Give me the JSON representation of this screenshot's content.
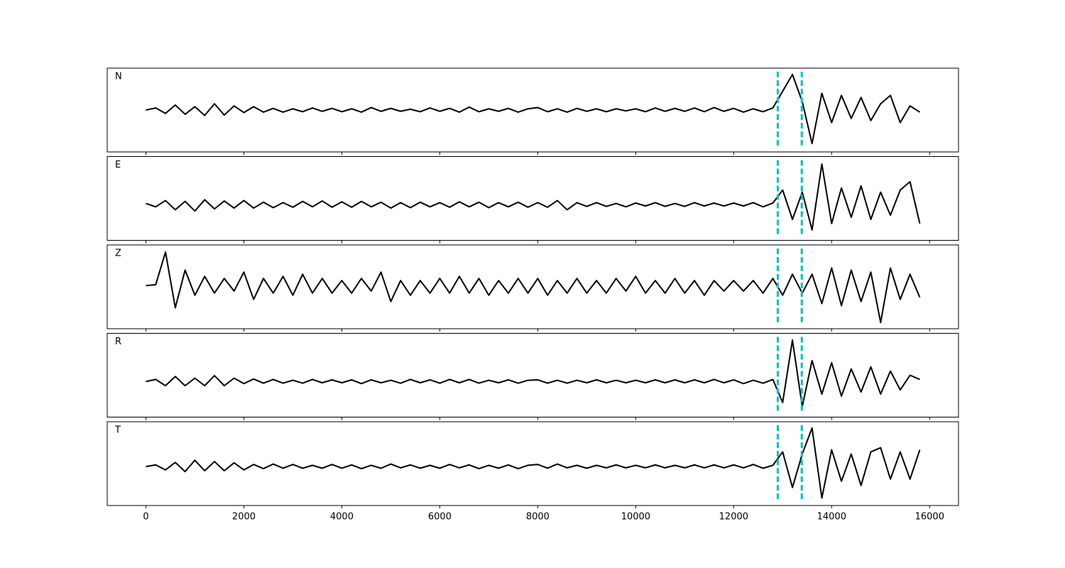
{
  "chart_data": {
    "type": "line",
    "x": [
      0,
      200,
      400,
      600,
      800,
      1000,
      1200,
      1400,
      1600,
      1800,
      2000,
      2200,
      2400,
      2600,
      2800,
      3000,
      3200,
      3400,
      3600,
      3800,
      4000,
      4200,
      4400,
      4600,
      4800,
      5000,
      5200,
      5400,
      5600,
      5800,
      6000,
      6200,
      6400,
      6600,
      6800,
      7000,
      7200,
      7400,
      7600,
      7800,
      8000,
      8200,
      8400,
      8600,
      8800,
      9000,
      9200,
      9400,
      9600,
      9800,
      10000,
      10200,
      10400,
      10600,
      10800,
      11000,
      11200,
      11400,
      11600,
      11800,
      12000,
      12200,
      12400,
      12600,
      12800,
      13000,
      13200,
      13400,
      13600,
      13800,
      14000,
      14200,
      14400,
      14600,
      14800,
      15000,
      15200,
      15400,
      15600,
      15800
    ],
    "xlim": [
      -790,
      16590
    ],
    "xticks": [
      0,
      2000,
      4000,
      6000,
      8000,
      10000,
      12000,
      14000,
      16000
    ],
    "vlines": [
      12900,
      13390
    ],
    "vline_color": "#00bfbf",
    "series": [
      {
        "name": "N",
        "color": "#000000",
        "ylim": [
          -1,
          1
        ],
        "values": [
          0,
          0.05,
          -0.08,
          0.12,
          -0.1,
          0.08,
          -0.13,
          0.15,
          -0.12,
          0.1,
          -0.06,
          0.08,
          -0.05,
          0.04,
          -0.05,
          0.03,
          -0.04,
          0.05,
          -0.03,
          0.04,
          -0.04,
          0.03,
          -0.05,
          0.06,
          -0.03,
          0.04,
          -0.03,
          0.02,
          -0.04,
          0.05,
          -0.03,
          0.04,
          -0.05,
          0.07,
          -0.04,
          0.03,
          -0.03,
          0.04,
          -0.05,
          0.03,
          0.06,
          -0.04,
          0.03,
          -0.05,
          0.04,
          -0.03,
          0.03,
          -0.04,
          0.03,
          -0.02,
          0.03,
          -0.04,
          0.05,
          -0.03,
          0.04,
          -0.03,
          0.05,
          -0.04,
          0.06,
          -0.03,
          0.04,
          -0.05,
          0.03,
          -0.04,
          0.05,
          0.45,
          0.85,
          0.2,
          -0.8,
          0.4,
          -0.3,
          0.35,
          -0.2,
          0.3,
          -0.25,
          0.15,
          0.35,
          -0.3,
          0.1,
          -0.05
        ]
      },
      {
        "name": "E",
        "color": "#000000",
        "ylim": [
          -0.85,
          1.15
        ],
        "values": [
          0.03,
          -0.05,
          0.1,
          -0.12,
          0.08,
          -0.15,
          0.12,
          -0.1,
          0.09,
          -0.08,
          0.1,
          -0.08,
          0.06,
          -0.07,
          0.05,
          -0.06,
          0.08,
          -0.05,
          0.09,
          -0.06,
          0.07,
          -0.06,
          0.08,
          -0.05,
          0.06,
          -0.08,
          0.05,
          -0.07,
          0.06,
          -0.05,
          0.05,
          -0.06,
          0.07,
          -0.05,
          0.06,
          -0.07,
          0.05,
          -0.05,
          0.06,
          -0.06,
          0.05,
          -0.06,
          0.1,
          -0.12,
          0.05,
          -0.04,
          0.05,
          -0.04,
          0.03,
          -0.05,
          0.04,
          -0.03,
          0.05,
          -0.04,
          0.03,
          -0.04,
          0.05,
          -0.03,
          0.04,
          -0.03,
          0.04,
          -0.03,
          0.05,
          -0.05,
          0.04,
          0.35,
          -0.35,
          0.3,
          -0.6,
          0.97,
          -0.45,
          0.4,
          -0.3,
          0.45,
          -0.35,
          0.3,
          -0.25,
          0.35,
          0.55,
          -0.45
        ]
      },
      {
        "name": "Z",
        "color": "#000000",
        "ylim": [
          -1,
          1
        ],
        "values": [
          0.03,
          0.05,
          0.83,
          -0.5,
          0.4,
          -0.2,
          0.25,
          -0.15,
          0.2,
          -0.1,
          0.35,
          -0.3,
          0.2,
          -0.15,
          0.25,
          -0.2,
          0.3,
          -0.15,
          0.2,
          -0.15,
          0.15,
          -0.15,
          0.2,
          -0.1,
          0.35,
          -0.35,
          0.15,
          -0.2,
          0.15,
          -0.15,
          0.2,
          -0.15,
          0.25,
          -0.15,
          0.2,
          -0.2,
          0.15,
          -0.15,
          0.2,
          -0.15,
          0.2,
          -0.2,
          0.15,
          -0.15,
          0.2,
          -0.15,
          0.15,
          -0.15,
          0.2,
          -0.1,
          0.25,
          -0.15,
          0.15,
          -0.15,
          0.2,
          -0.15,
          0.15,
          -0.2,
          0.15,
          -0.1,
          0.15,
          -0.1,
          0.15,
          -0.15,
          0.2,
          -0.2,
          0.3,
          -0.15,
          0.3,
          -0.4,
          0.45,
          -0.45,
          0.4,
          -0.35,
          0.35,
          -0.85,
          0.45,
          -0.3,
          0.3,
          -0.25
        ]
      },
      {
        "name": "R",
        "color": "#000000",
        "ylim": [
          -0.85,
          1.15
        ],
        "values": [
          0,
          0.05,
          -0.1,
          0.12,
          -0.1,
          0.08,
          -0.1,
          0.14,
          -0.1,
          0.08,
          -0.05,
          0.06,
          -0.04,
          0.05,
          -0.04,
          0.03,
          -0.04,
          0.05,
          -0.03,
          0.04,
          -0.03,
          0.04,
          -0.05,
          0.04,
          -0.03,
          0.03,
          -0.04,
          0.05,
          -0.03,
          0.04,
          -0.04,
          0.05,
          -0.03,
          0.05,
          -0.04,
          0.03,
          -0.03,
          0.04,
          -0.04,
          0.03,
          0.04,
          -0.04,
          0.03,
          -0.04,
          0.03,
          -0.03,
          0.04,
          -0.03,
          0.03,
          -0.03,
          0.03,
          -0.03,
          0.04,
          -0.03,
          0.04,
          -0.03,
          0.04,
          -0.03,
          0.05,
          -0.03,
          0.04,
          -0.05,
          0.03,
          -0.04,
          0.05,
          -0.5,
          0.99,
          -0.6,
          0.5,
          -0.3,
          0.45,
          -0.35,
          0.3,
          -0.25,
          0.35,
          -0.3,
          0.25,
          -0.2,
          0.15,
          0.05
        ]
      },
      {
        "name": "T",
        "color": "#000000",
        "ylim": [
          -0.93,
          1.07
        ],
        "values": [
          0,
          0.04,
          -0.08,
          0.1,
          -0.12,
          0.15,
          -0.1,
          0.12,
          -0.1,
          0.09,
          -0.08,
          0.05,
          -0.05,
          0.06,
          -0.04,
          0.05,
          -0.04,
          0.03,
          -0.04,
          0.05,
          -0.04,
          0.04,
          -0.05,
          0.03,
          -0.04,
          0.06,
          -0.03,
          0.04,
          -0.04,
          0.03,
          -0.04,
          0.05,
          -0.03,
          0.04,
          -0.05,
          0.03,
          -0.04,
          0.04,
          -0.05,
          0.03,
          0.05,
          -0.04,
          0.06,
          -0.03,
          0.03,
          -0.04,
          0.03,
          -0.03,
          0.04,
          -0.03,
          0.03,
          -0.03,
          0.04,
          -0.03,
          0.03,
          -0.03,
          0.04,
          -0.03,
          0.04,
          -0.03,
          0.04,
          -0.03,
          0.05,
          -0.04,
          0.03,
          0.35,
          -0.5,
          0.3,
          0.92,
          -0.75,
          0.4,
          -0.35,
          0.3,
          -0.45,
          0.35,
          0.45,
          -0.3,
          0.35,
          -0.3,
          0.4
        ]
      }
    ]
  }
}
